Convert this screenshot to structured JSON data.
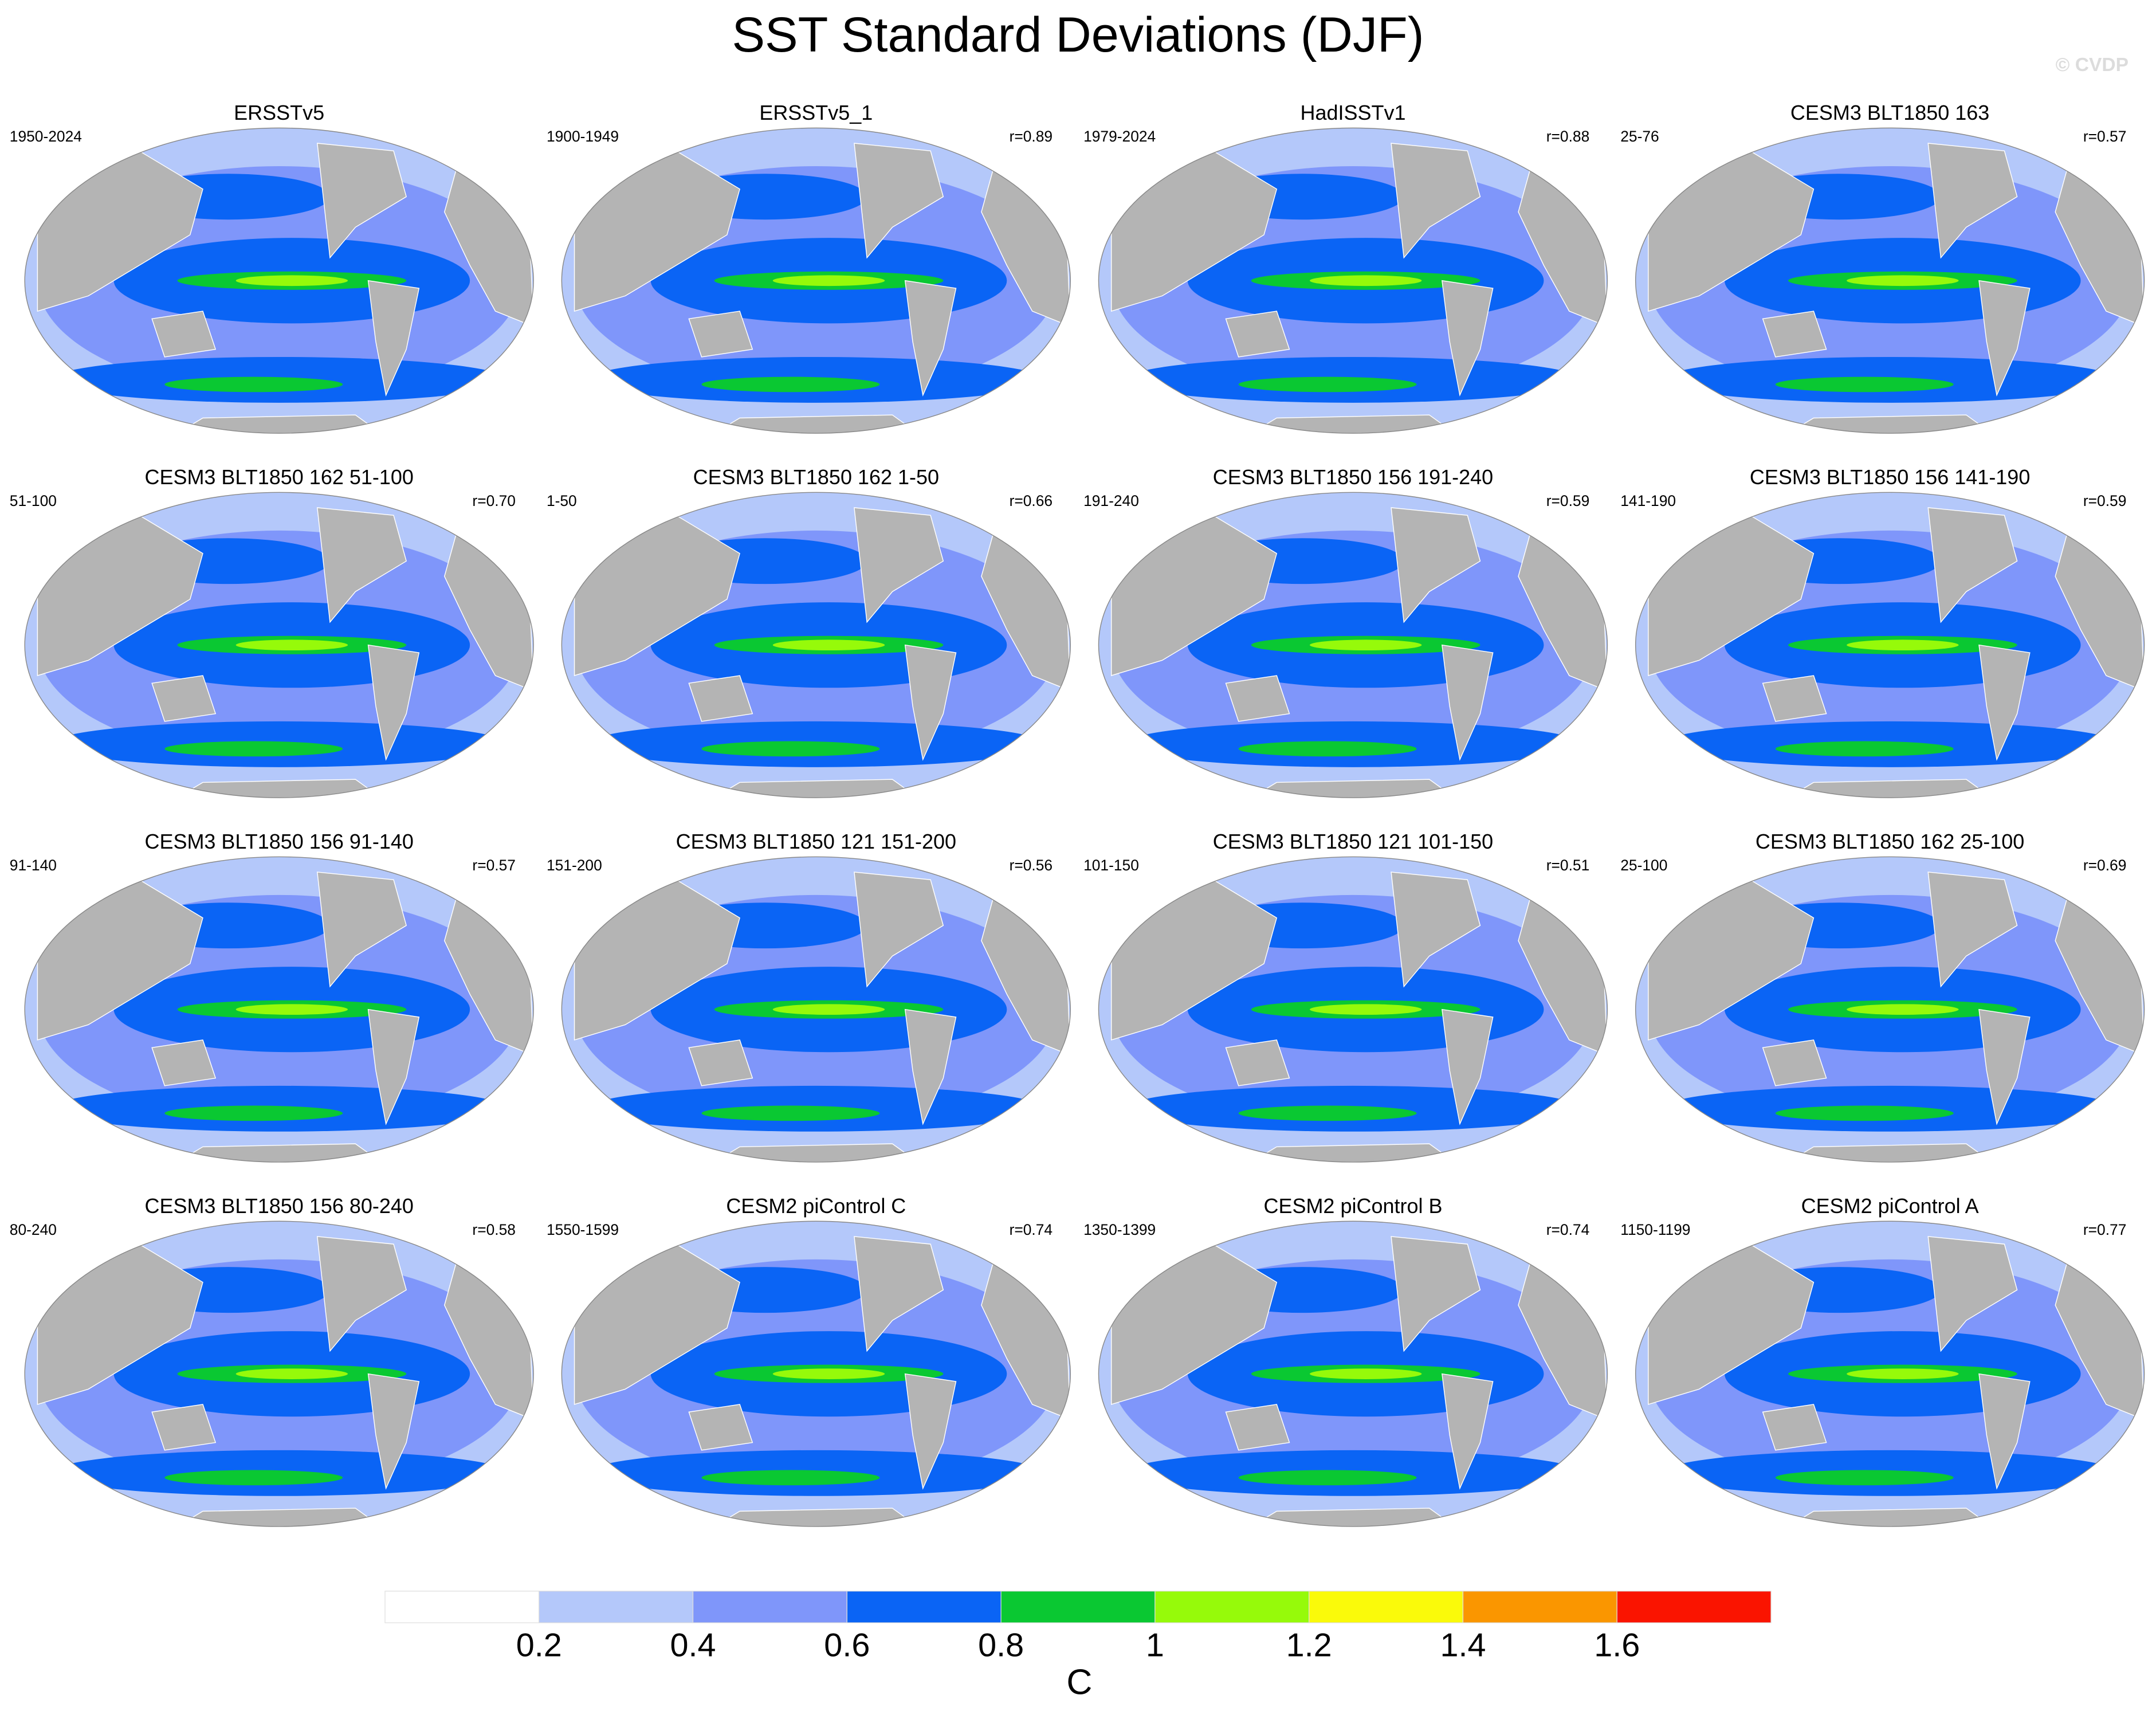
{
  "title": "SST Standard Deviations (DJF)",
  "watermark": "© CVDP",
  "panels": [
    {
      "title": "ERSSTv5",
      "period": "1950-2024"
    },
    {
      "title": "ERSSTv5_1",
      "period": "1900-1949",
      "r": "r=0.89"
    },
    {
      "title": "HadISSTv1",
      "period": "1979-2024",
      "r": "r=0.88"
    },
    {
      "title": "CESM3 BLT1850 163",
      "period": "25-76",
      "r": "r=0.57"
    },
    {
      "title": "CESM3 BLT1850 162 51-100",
      "period": "51-100",
      "r": "r=0.70"
    },
    {
      "title": "CESM3 BLT1850 162 1-50",
      "period": "1-50",
      "r": "r=0.66"
    },
    {
      "title": "CESM3 BLT1850 156 191-240",
      "period": "191-240",
      "r": "r=0.59"
    },
    {
      "title": "CESM3 BLT1850 156 141-190",
      "period": "141-190",
      "r": "r=0.59"
    },
    {
      "title": "CESM3 BLT1850 156 91-140",
      "period": "91-140",
      "r": "r=0.57"
    },
    {
      "title": "CESM3 BLT1850 121 151-200",
      "period": "151-200",
      "r": "r=0.56"
    },
    {
      "title": "CESM3 BLT1850 121 101-150",
      "period": "101-150",
      "r": "r=0.51"
    },
    {
      "title": "CESM3 BLT1850 162 25-100",
      "period": "25-100",
      "r": "r=0.69"
    },
    {
      "title": "CESM3 BLT1850 156 80-240",
      "period": "80-240",
      "r": "r=0.58"
    },
    {
      "title": "CESM2 piControl C",
      "period": "1550-1599",
      "r": "r=0.74"
    },
    {
      "title": "CESM2 piControl B",
      "period": "1350-1399",
      "r": "r=0.74"
    },
    {
      "title": "CESM2 piControl A",
      "period": "1150-1199",
      "r": "r=0.77"
    }
  ],
  "colorbar": {
    "ticks": [
      0.2,
      0.4,
      0.6,
      0.8,
      1,
      1.2,
      1.4,
      1.6
    ],
    "colors": [
      "#ffffff",
      "#b4c8fa",
      "#7f96fa",
      "#0a64f5",
      "#0ac832",
      "#96fa0a",
      "#fafa0a",
      "#fa9600",
      "#fa1400"
    ],
    "unit": "C"
  }
}
